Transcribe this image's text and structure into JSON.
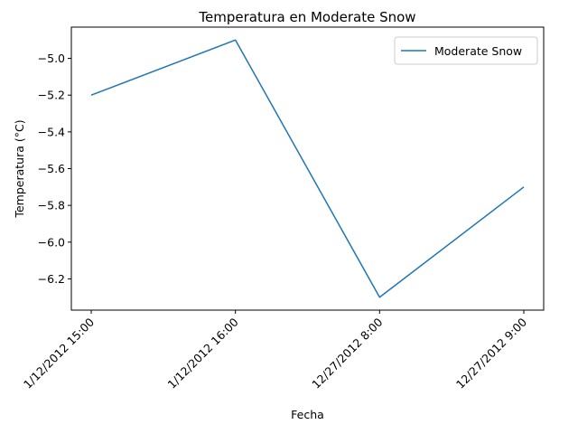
{
  "chart_data": {
    "type": "line",
    "title": "Temperatura en Moderate Snow",
    "xlabel": "Fecha",
    "ylabel": "Temperatura (°C)",
    "categories": [
      "1/12/2012 15:00",
      "1/12/2012 16:00",
      "12/27/2012 8:00",
      "12/27/2012 9:00"
    ],
    "series": [
      {
        "name": "Moderate Snow",
        "values": [
          -5.2,
          -4.9,
          -6.3,
          -5.7
        ],
        "color": "#1f77b4"
      }
    ],
    "yticks": [
      -6.2,
      -6.0,
      -5.8,
      -5.6,
      -5.4,
      -5.2,
      -5.0
    ],
    "ytick_labels": [
      "−6.2",
      "−6.0",
      "−5.8",
      "−5.6",
      "−5.4",
      "−5.2",
      "−5.0"
    ],
    "ylim": [
      -6.37,
      -4.83
    ],
    "grid": false,
    "legend_position": "top-right"
  }
}
